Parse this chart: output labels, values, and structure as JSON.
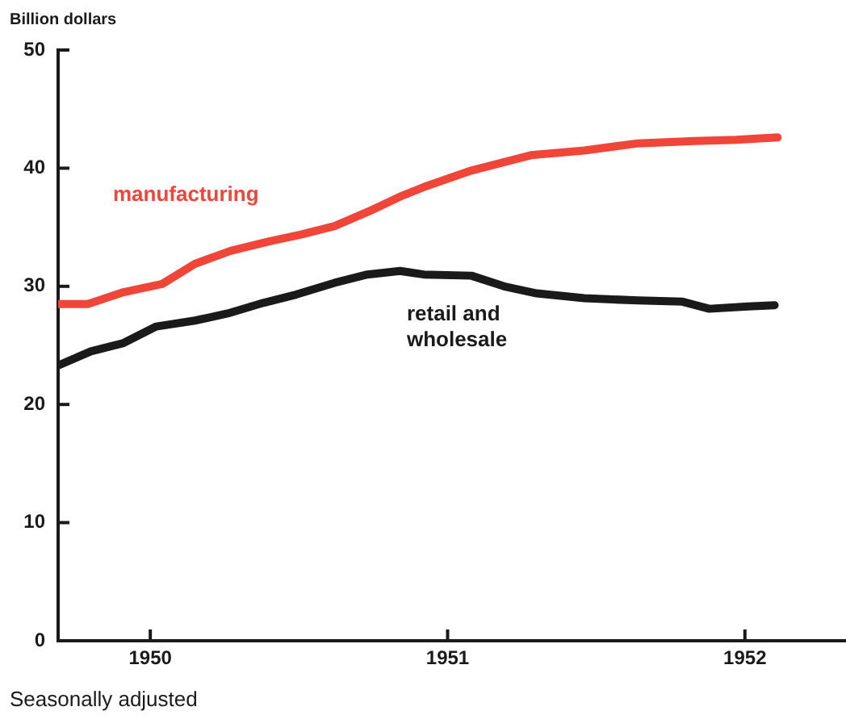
{
  "chart_data": {
    "type": "line",
    "ylabel": "Billion dollars",
    "annotations": [
      "Seasonally adjusted"
    ],
    "xlim": [
      1949.69,
      1952.34
    ],
    "xticks": [
      1950,
      1951,
      1952
    ],
    "ylim": [
      0,
      50
    ],
    "yticks": [
      0,
      10,
      20,
      30,
      40,
      50
    ],
    "grid": false,
    "legend": false,
    "marker": "none",
    "line_style": "solid",
    "series": [
      {
        "name": "manufacturing",
        "color": "#f0463a",
        "x": [
          1949.69,
          1949.79,
          1949.91,
          1950.04,
          1950.15,
          1950.27,
          1950.4,
          1950.51,
          1950.62,
          1950.74,
          1950.85,
          1950.92,
          1951.08,
          1951.28,
          1951.46,
          1951.64,
          1951.83,
          1951.97,
          1952.11
        ],
        "values": [
          28.5,
          28.5,
          29.5,
          30.2,
          31.9,
          33.0,
          33.8,
          34.4,
          35.1,
          36.4,
          37.7,
          38.4,
          39.8,
          41.1,
          41.5,
          42.1,
          42.3,
          42.4,
          42.6
        ]
      },
      {
        "name": "retail and wholesale",
        "color": "#1a1a1a",
        "x": [
          1949.69,
          1949.8,
          1949.91,
          1950.02,
          1950.15,
          1950.26,
          1950.38,
          1950.49,
          1950.62,
          1950.73,
          1950.84,
          1950.92,
          1951.08,
          1951.19,
          1951.3,
          1951.46,
          1951.64,
          1951.79,
          1951.88,
          1952.01,
          1952.1
        ],
        "values": [
          23.3,
          24.5,
          25.2,
          26.6,
          27.1,
          27.7,
          28.6,
          29.3,
          30.3,
          31.0,
          31.3,
          31.0,
          30.9,
          30.0,
          29.4,
          29.0,
          28.8,
          28.7,
          28.1,
          28.3,
          28.4
        ]
      }
    ]
  }
}
